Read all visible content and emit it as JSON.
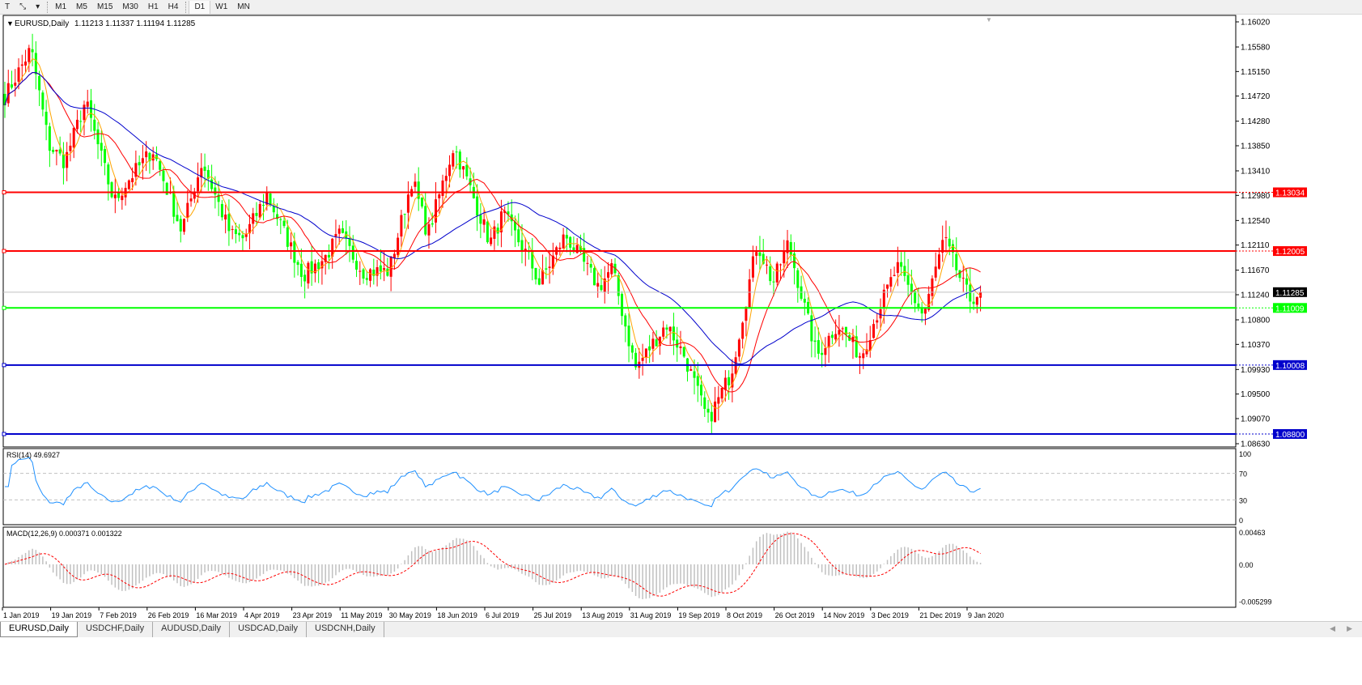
{
  "toolbar": {
    "tools": [
      {
        "name": "text-tool",
        "glyph": "T"
      },
      {
        "name": "line-tools",
        "glyph": "⤡"
      }
    ],
    "timeframes": [
      "M1",
      "M5",
      "M15",
      "M30",
      "H1",
      "H4",
      "D1",
      "W1",
      "MN"
    ],
    "selected": "D1"
  },
  "chart": {
    "symbol_label": "EURUSD,Daily",
    "ohlc": "1.11213 1.11337 1.11194 1.11285",
    "current_price": "1.11285"
  },
  "price_axis": [
    "1.16020",
    "1.15580",
    "1.15150",
    "1.14720",
    "1.14280",
    "1.13850",
    "1.13410",
    "1.12980",
    "1.12540",
    "1.12110",
    "1.11670",
    "1.11240",
    "1.10800",
    "1.10370",
    "1.09930",
    "1.09500",
    "1.09070",
    "1.08630"
  ],
  "levels": [
    {
      "price": "1.13034",
      "color": "#ff0000"
    },
    {
      "price": "1.12005",
      "color": "#ff0000"
    },
    {
      "price": "1.11009",
      "color": "#00ff00"
    },
    {
      "price": "1.10008",
      "color": "#0000cc"
    },
    {
      "price": "1.08800",
      "color": "#0000cc"
    }
  ],
  "rsi": {
    "label": "RSI(14) 49.6927",
    "axis": [
      "100",
      "70",
      "30",
      "0"
    ]
  },
  "macd": {
    "label": "MACD(12,26,9) 0.000371 0.001322",
    "axis": [
      "0.00463",
      "0.00",
      "-0.005299"
    ]
  },
  "date_axis": [
    "1 Jan 2019",
    "19 Jan 2019",
    "7 Feb 2019",
    "26 Feb 2019",
    "16 Mar 2019",
    "4 Apr 2019",
    "23 Apr 2019",
    "11 May 2019",
    "30 May 2019",
    "18 Jun 2019",
    "6 Jul 2019",
    "25 Jul 2019",
    "13 Aug 2019",
    "31 Aug 2019",
    "19 Sep 2019",
    "8 Oct 2019",
    "26 Oct 2019",
    "14 Nov 2019",
    "3 Dec 2019",
    "21 Dec 2019",
    "9 Jan 2020"
  ],
  "tabs": [
    {
      "label": "EURUSD,Daily",
      "active": true
    },
    {
      "label": "USDCHF,Daily"
    },
    {
      "label": "AUDUSD,Daily"
    },
    {
      "label": "USDCAD,Daily"
    },
    {
      "label": "USDCNH,Daily"
    }
  ],
  "colors": {
    "bull": "#ff0000",
    "bear": "#00ff00",
    "ma_fast": "#ffa500",
    "ma_mid": "#ff0000",
    "ma_slow": "#0000cc",
    "rsi": "#1e90ff",
    "macd_hist": "#c0c0c0",
    "macd_signal": "#ff0000"
  },
  "chart_data": {
    "type": "candlestick",
    "ylim": [
      1.0863,
      1.1602
    ],
    "close_keypoints": [
      [
        "2019-01-01",
        1.1463
      ],
      [
        "2019-01-12",
        1.1555
      ],
      [
        "2019-01-19",
        1.1385
      ],
      [
        "2019-01-25",
        1.1357
      ],
      [
        "2019-02-02",
        1.1463
      ],
      [
        "2019-02-13",
        1.1286
      ],
      [
        "2019-02-19",
        1.1328
      ],
      [
        "2019-02-28",
        1.1378
      ],
      [
        "2019-03-11",
        1.1236
      ],
      [
        "2019-03-19",
        1.1357
      ],
      [
        "2019-03-30",
        1.1229
      ],
      [
        "2019-04-04",
        1.1222
      ],
      [
        "2019-04-13",
        1.13
      ],
      [
        "2019-04-27",
        1.1158
      ],
      [
        "2019-05-05",
        1.1187
      ],
      [
        "2019-05-11",
        1.1229
      ],
      [
        "2019-05-20",
        1.1165
      ],
      [
        "2019-05-30",
        1.1165
      ],
      [
        "2019-06-08",
        1.1328
      ],
      [
        "2019-06-14",
        1.1229
      ],
      [
        "2019-06-24",
        1.1385
      ],
      [
        "2019-06-30",
        1.1314
      ],
      [
        "2019-07-08",
        1.1215
      ],
      [
        "2019-07-13",
        1.1265
      ],
      [
        "2019-07-23",
        1.1187
      ],
      [
        "2019-07-27",
        1.1144
      ],
      [
        "2019-08-06",
        1.1229
      ],
      [
        "2019-08-19",
        1.1137
      ],
      [
        "2019-08-24",
        1.1172
      ],
      [
        "2019-09-02",
        1.0995
      ],
      [
        "2019-09-14",
        1.1073
      ],
      [
        "2019-09-21",
        1.1016
      ],
      [
        "2019-09-30",
        1.0903
      ],
      [
        "2019-10-09",
        1.0988
      ],
      [
        "2019-10-19",
        1.1215
      ],
      [
        "2019-10-25",
        1.1144
      ],
      [
        "2019-10-31",
        1.1215
      ],
      [
        "2019-11-11",
        1.1016
      ],
      [
        "2019-11-19",
        1.1073
      ],
      [
        "2019-11-28",
        1.1016
      ],
      [
        "2019-12-05",
        1.1101
      ],
      [
        "2019-12-12",
        1.1172
      ],
      [
        "2019-12-22",
        1.1087
      ],
      [
        "2019-12-30",
        1.1222
      ],
      [
        "2020-01-06",
        1.1144
      ],
      [
        "2020-01-09",
        1.1116
      ],
      [
        "2020-01-13",
        1.11285
      ]
    ]
  }
}
